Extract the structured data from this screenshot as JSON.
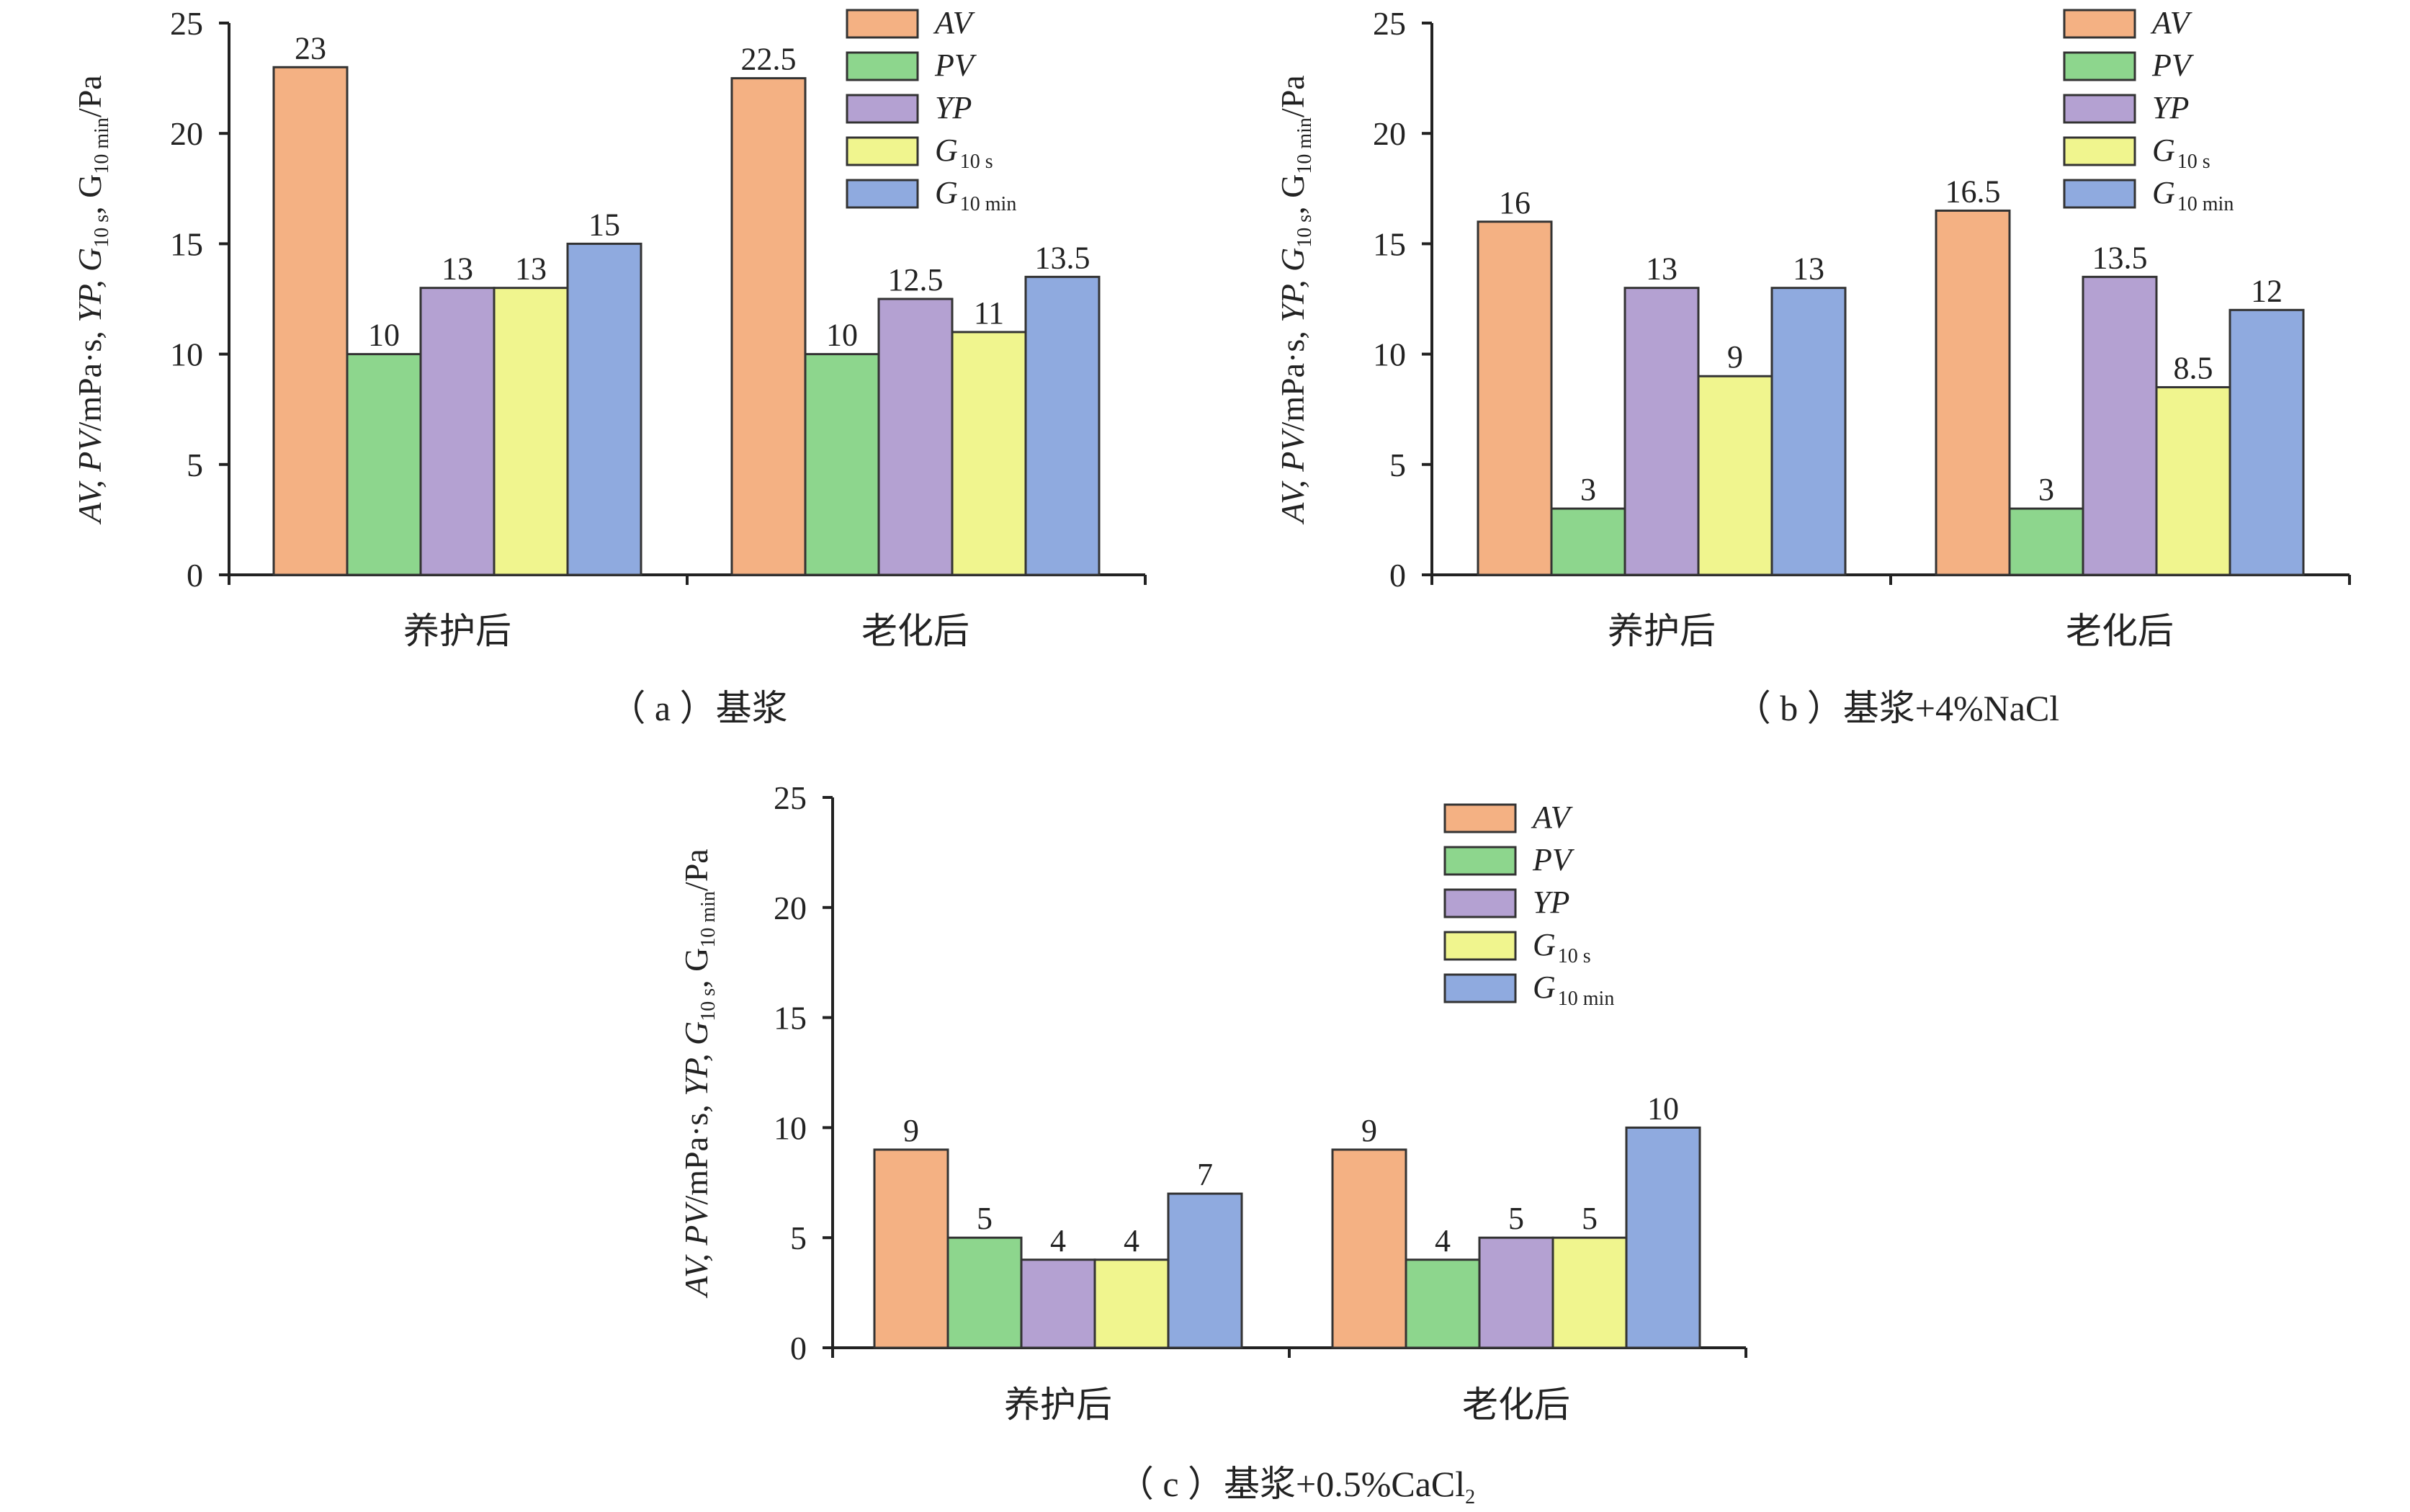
{
  "colors": {
    "AV": "#f4b183",
    "PV": "#8dd68d",
    "YP": "#b4a1d2",
    "G10s": "#f0f58e",
    "G10min": "#8faadf",
    "axis": "#222222",
    "bar_edge": "#333333"
  },
  "chart_data": [
    {
      "type": "bar",
      "caption": "（ a ）基浆",
      "categories": [
        "养护后",
        "老化后"
      ],
      "series": [
        {
          "name": "AV",
          "values": [
            23,
            22.5
          ]
        },
        {
          "name": "PV",
          "values": [
            10,
            10
          ]
        },
        {
          "name": "YP",
          "values": [
            13,
            12.5
          ]
        },
        {
          "name": "G10 s",
          "values": [
            13,
            11
          ]
        },
        {
          "name": "G10 min",
          "values": [
            15,
            13.5
          ]
        }
      ],
      "ylabel": "AV, PV/mPa·s, YP, G10 s, G10 min/Pa",
      "ylim": [
        0,
        25
      ],
      "yticks": [
        0,
        5,
        10,
        15,
        20,
        25
      ],
      "legend": "top-right"
    },
    {
      "type": "bar",
      "caption": "（ b ）基浆+4%NaCl",
      "categories": [
        "养护后",
        "老化后"
      ],
      "series": [
        {
          "name": "AV",
          "values": [
            16,
            16.5
          ]
        },
        {
          "name": "PV",
          "values": [
            3,
            3
          ]
        },
        {
          "name": "YP",
          "values": [
            13,
            13.5
          ]
        },
        {
          "name": "G10 s",
          "values": [
            9,
            8.5
          ]
        },
        {
          "name": "G10 min",
          "values": [
            13,
            12
          ]
        }
      ],
      "ylabel": "AV, PV/mPa·s, YP, G10 s, G10 min/Pa",
      "ylim": [
        0,
        25
      ],
      "yticks": [
        0,
        5,
        10,
        15,
        20,
        25
      ],
      "legend": "top-right"
    },
    {
      "type": "bar",
      "caption": "（ c ）基浆+0.5%CaCl",
      "caption_sub": "2",
      "categories": [
        "养护后",
        "老化后"
      ],
      "series": [
        {
          "name": "AV",
          "values": [
            9,
            9
          ]
        },
        {
          "name": "PV",
          "values": [
            5,
            4
          ]
        },
        {
          "name": "YP",
          "values": [
            4,
            5
          ]
        },
        {
          "name": "G10 s",
          "values": [
            4,
            5
          ]
        },
        {
          "name": "G10 min",
          "values": [
            7,
            10
          ]
        }
      ],
      "ylabel": "AV, PV/mPa·s, YP, G10 s, G10 min/Pa",
      "ylim": [
        0,
        25
      ],
      "yticks": [
        0,
        5,
        10,
        15,
        20,
        25
      ],
      "legend": "top-right"
    }
  ],
  "legend_entries": [
    {
      "key": "AV",
      "main": "AV",
      "sub": ""
    },
    {
      "key": "PV",
      "main": "PV",
      "sub": ""
    },
    {
      "key": "YP",
      "main": "YP",
      "sub": ""
    },
    {
      "key": "G10s",
      "main": "G",
      "sub": "10 s"
    },
    {
      "key": "G10min",
      "main": "G",
      "sub": "10 min"
    }
  ],
  "ylabel_parts": {
    "p1": "AV, PV",
    "p2": "/mPa·s, ",
    "p3": "YP, G",
    "p4": "10 s",
    "p5": ", G",
    "p6": "10 min",
    "p7": "/Pa"
  }
}
